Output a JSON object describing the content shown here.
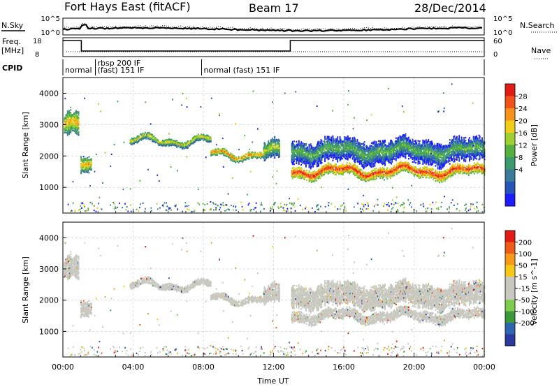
{
  "header": {
    "station": "Fort Hays East (fitACF)",
    "beam": "Beam 17",
    "date": "28/Dec/2014"
  },
  "top_panels": {
    "nsky_label": "N.Sky",
    "nsearch_label": "N.Search",
    "noise_ticks": [
      "10^5",
      "10^0"
    ],
    "freq_label": "Freq.",
    "freq_unit": "[MHz]",
    "freq_ticks": [
      "18",
      "8"
    ],
    "nave_label": "Nave",
    "nave_ticks": [
      "60",
      "0"
    ],
    "cpid_label": "CPID",
    "cpid_segments": [
      {
        "start": 0.0,
        "lines": [
          "normal"
        ]
      },
      {
        "start": 1.85,
        "lines": [
          "rbsp 200 IF",
          "(fast) 151 IF"
        ]
      },
      {
        "start": 7.9,
        "lines": [
          "normal (fast) 151 IF"
        ]
      }
    ]
  },
  "chart_data": [
    {
      "type": "heatmap",
      "parameter": "Power",
      "ylabel": "Slant Range [km]",
      "xlim": [
        0,
        24
      ],
      "ylim": [
        180,
        4500
      ],
      "yticks": [
        1000,
        2000,
        3000,
        4000
      ],
      "colorbar": {
        "label": "Power [dB]",
        "ticks": [
          "28",
          "24",
          "20",
          "16",
          "12",
          "8",
          "4"
        ],
        "range": [
          0,
          30
        ],
        "colors": [
          "#1c1cff",
          "#2856b8",
          "#3a7a9a",
          "#3c9b6e",
          "#56b040",
          "#9ed12f",
          "#f2cd18",
          "#f7921b",
          "#f0521a",
          "#e21b14"
        ]
      },
      "regions": [
        {
          "x": [
            0.05,
            0.9
          ],
          "center_km": 2950,
          "width_km": 650,
          "power_db": 22
        },
        {
          "x": [
            1.0,
            1.6
          ],
          "center_km": 1650,
          "width_km": 450,
          "power_db": 22
        },
        {
          "x": [
            3.8,
            8.4
          ],
          "center_km": 2480,
          "width_km": 200,
          "power_db": 20
        },
        {
          "x": [
            8.4,
            11.6
          ],
          "center_km": 2050,
          "width_km": 200,
          "power_db": 24
        },
        {
          "x": [
            11.4,
            12.3
          ],
          "center_km": 2100,
          "width_km": 550,
          "power_db": 18
        },
        {
          "x": [
            13.0,
            24.0
          ],
          "center_km": 1500,
          "width_km": 300,
          "power_db": 28
        },
        {
          "x": [
            13.0,
            24.0
          ],
          "center_km": 2150,
          "width_km": 650,
          "power_db": 14
        }
      ]
    },
    {
      "type": "heatmap",
      "parameter": "Velocity",
      "ylabel": "Slant Range [km]",
      "xlabel": "Time UT",
      "xlim": [
        0,
        24
      ],
      "ylim": [
        180,
        4500
      ],
      "yticks": [
        1000,
        2000,
        3000,
        4000
      ],
      "xticks": [
        "00:00",
        "04:00",
        "08:00",
        "12:00",
        "16:00",
        "20:00",
        "00:00"
      ],
      "colorbar": {
        "label": "Velocity [m s^-1]",
        "ticks": [
          "200",
          "100",
          "50",
          "15",
          "-15",
          "-50",
          "-100",
          "-200"
        ],
        "range": [
          -250,
          250
        ],
        "colors": [
          "#2a3a9e",
          "#2e66b0",
          "#3a9a3a",
          "#7ccd4e",
          "#c8c8c0",
          "#c8c8c0",
          "#f7c818",
          "#f79a1b",
          "#f05a1a",
          "#e21b14"
        ]
      },
      "dominant_velocity_ms": [
        -15,
        15
      ]
    }
  ],
  "colors": {
    "ground_scatter": "#c8c8c0",
    "grid": "#bdbdbd",
    "frame": "#000000"
  }
}
